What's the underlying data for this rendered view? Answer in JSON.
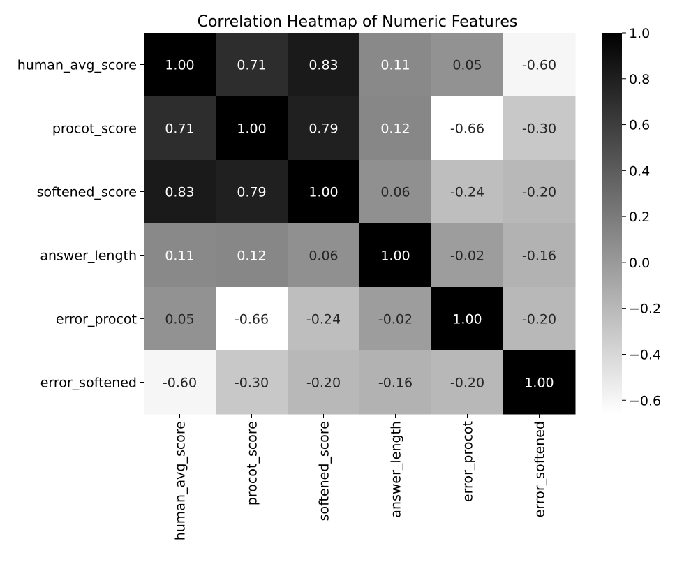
{
  "chart_data": {
    "type": "heatmap",
    "title": "Correlation Heatmap of Numeric Features",
    "xlabel": "",
    "ylabel": "",
    "rows": [
      "human_avg_score",
      "procot_score",
      "softened_score",
      "answer_length",
      "error_procot",
      "error_softened"
    ],
    "columns": [
      "human_avg_score",
      "procot_score",
      "softened_score",
      "answer_length",
      "error_procot",
      "error_softened"
    ],
    "values": [
      [
        1.0,
        0.71,
        0.83,
        0.11,
        0.05,
        -0.6
      ],
      [
        0.71,
        1.0,
        0.79,
        0.12,
        -0.66,
        -0.3
      ],
      [
        0.83,
        0.79,
        1.0,
        0.06,
        -0.24,
        -0.2
      ],
      [
        0.11,
        0.12,
        0.06,
        1.0,
        -0.02,
        -0.16
      ],
      [
        0.05,
        -0.66,
        -0.24,
        -0.02,
        1.0,
        -0.2
      ],
      [
        -0.6,
        -0.3,
        -0.2,
        -0.16,
        -0.2,
        1.0
      ]
    ],
    "value_labels": [
      [
        "1.00",
        "0.71",
        "0.83",
        "0.11",
        "0.05",
        "-0.60"
      ],
      [
        "0.71",
        "1.00",
        "0.79",
        "0.12",
        "-0.66",
        "-0.30"
      ],
      [
        "0.83",
        "0.79",
        "1.00",
        "0.06",
        "-0.24",
        "-0.20"
      ],
      [
        "0.11",
        "0.12",
        "0.06",
        "1.00",
        "-0.02",
        "-0.16"
      ],
      [
        "0.05",
        "-0.66",
        "-0.24",
        "-0.02",
        "1.00",
        "-0.20"
      ],
      [
        "-0.60",
        "-0.30",
        "-0.20",
        "-0.16",
        "-0.20",
        "1.00"
      ]
    ],
    "color_scale": {
      "range": [
        -0.66,
        1.0
      ],
      "low_color": "#ffffff",
      "high_color": "#000000",
      "ticks": [
        1.0,
        0.8,
        0.6,
        0.4,
        0.2,
        0.0,
        -0.2,
        -0.4,
        -0.6
      ],
      "tick_labels": [
        "1.0",
        "0.8",
        "0.6",
        "0.4",
        "0.2",
        "0.0",
        "−0.2",
        "−0.4",
        "−0.6"
      ]
    },
    "colorbar_position": "right",
    "grid": false
  }
}
